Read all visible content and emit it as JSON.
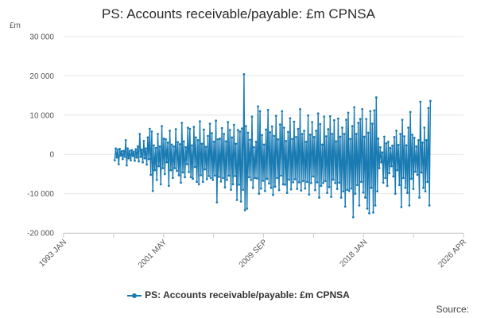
{
  "chart_data": {
    "type": "line",
    "title": "PS: Accounts receivable/payable: £m CPNSA",
    "yunit": "£m",
    "ylim": [
      -20000,
      30000
    ],
    "yticks": [
      -20000,
      -10000,
      0,
      10000,
      20000,
      30000
    ],
    "ytick_labels": [
      "-20 000",
      "-10 000",
      "0",
      "10 000",
      "20 000",
      "30 000"
    ],
    "x_range": [
      1993.0,
      2026.25
    ],
    "xticks": [
      1993.0,
      2001.33,
      2009.67,
      2018.0,
      2026.25
    ],
    "xtick_labels": [
      "1993 JAN",
      "2001 MAY",
      "2009 SEP",
      "2018 JAN",
      "2026 APR"
    ],
    "grid": true,
    "legend_position": "bottom",
    "series": [
      {
        "name": "PS: Accounts receivable/payable: £m CPNSA",
        "color": "#1a7bb3",
        "x_start": 1997.25,
        "step": 0.08333,
        "values": [
          -1500,
          1500,
          -800,
          1200,
          -2500,
          1400,
          -300,
          800,
          -1200,
          900,
          -600,
          3600,
          -2800,
          1500,
          -1000,
          900,
          -1500,
          1100,
          -400,
          700,
          -1600,
          1300,
          -800,
          2000,
          -1800,
          5200,
          -600,
          1200,
          -2000,
          3400,
          -1000,
          1500,
          -2600,
          4300,
          -1200,
          6500,
          -5200,
          5800,
          -9300,
          2300,
          -4000,
          1600,
          -6500,
          5200,
          -3000,
          2000,
          -7600,
          7200,
          -3500,
          4000,
          -5000,
          3800,
          -2000,
          3000,
          -8000,
          6000,
          -4000,
          2500,
          -6000,
          2000,
          -3500,
          6400,
          -4200,
          3100,
          -5300,
          2600,
          -7200,
          8000,
          -4600,
          3300,
          -5800,
          1800,
          -2500,
          6800,
          -4500,
          6500,
          -5800,
          2300,
          -6200,
          7000,
          -3200,
          4300,
          -7000,
          3600,
          -7600,
          8400,
          -5300,
          2700,
          -7000,
          6300,
          -3800,
          1900,
          -6300,
          4700,
          -5500,
          7800,
          -6000,
          5400,
          -6500,
          3200,
          -5400,
          8600,
          -12200,
          3800,
          -5700,
          4000,
          -6900,
          6700,
          -6000,
          5200,
          -8400,
          3300,
          -6500,
          8200,
          -5400,
          6200,
          -9000,
          4300,
          -7600,
          7500,
          -5500,
          2700,
          -11600,
          6200,
          -7700,
          5800,
          -12000,
          6600,
          -9000,
          20400,
          -14200,
          7200,
          -13800,
          5500,
          -5800,
          3700,
          -6500,
          9600,
          -8500,
          1800,
          -6000,
          3200,
          -6100,
          12200,
          -10000,
          11000,
          -8700,
          4900,
          -6700,
          2500,
          -9300,
          6300,
          -6200,
          11300,
          -7400,
          5600,
          -8500,
          7100,
          -10300,
          4700,
          -8200,
          9800,
          -6000,
          3800,
          -9100,
          7600,
          -5400,
          11000,
          -7600,
          6800,
          -7700,
          3400,
          -9800,
          5700,
          -6400,
          9200,
          -8900,
          3900,
          -7100,
          8300,
          -6300,
          4400,
          -8800,
          6500,
          -7100,
          11500,
          -9200,
          5200,
          -6800,
          6000,
          -8700,
          3200,
          -7000,
          9900,
          -10200,
          5000,
          -7300,
          8200,
          -5600,
          4400,
          -9100,
          6000,
          -7100,
          10400,
          -11000,
          7700,
          -8000,
          2500,
          -7300,
          9600,
          -6800,
          4600,
          -9800,
          6400,
          -8300,
          9700,
          -10800,
          5200,
          -6400,
          8700,
          -7300,
          3300,
          -8800,
          9100,
          -7200,
          4500,
          -11000,
          6800,
          -9400,
          5200,
          -13300,
          8800,
          -9000,
          10600,
          -9300,
          3900,
          -8700,
          7200,
          -16000,
          12000,
          -10000,
          5200,
          -7800,
          8000,
          -13000,
          9000,
          -7000,
          11500,
          -9700,
          4500,
          -11000,
          9000,
          -13800,
          5500,
          -15000,
          11000,
          -8500,
          7800,
          -14800,
          11200,
          -13000,
          14500,
          -9400,
          4000,
          -3500,
          1800,
          -2000,
          500,
          -7200,
          4500,
          -6000,
          2800,
          -8000,
          3200,
          -4800,
          1600,
          -3000,
          2200,
          -5600,
          4400,
          -10000,
          6000,
          -4000,
          2400,
          -7800,
          5200,
          -13400,
          8800,
          -6000,
          4600,
          -8500,
          2300,
          -9800,
          6800,
          -13000,
          10800,
          -6200,
          5000,
          -8800,
          4200,
          -4400,
          2000,
          -5200,
          3600,
          -11000,
          13400,
          -4600,
          3000,
          -8500,
          6800,
          -9400,
          3600,
          -7000,
          11800,
          -13000,
          13600
        ]
      }
    ],
    "source_label": "Source:"
  }
}
